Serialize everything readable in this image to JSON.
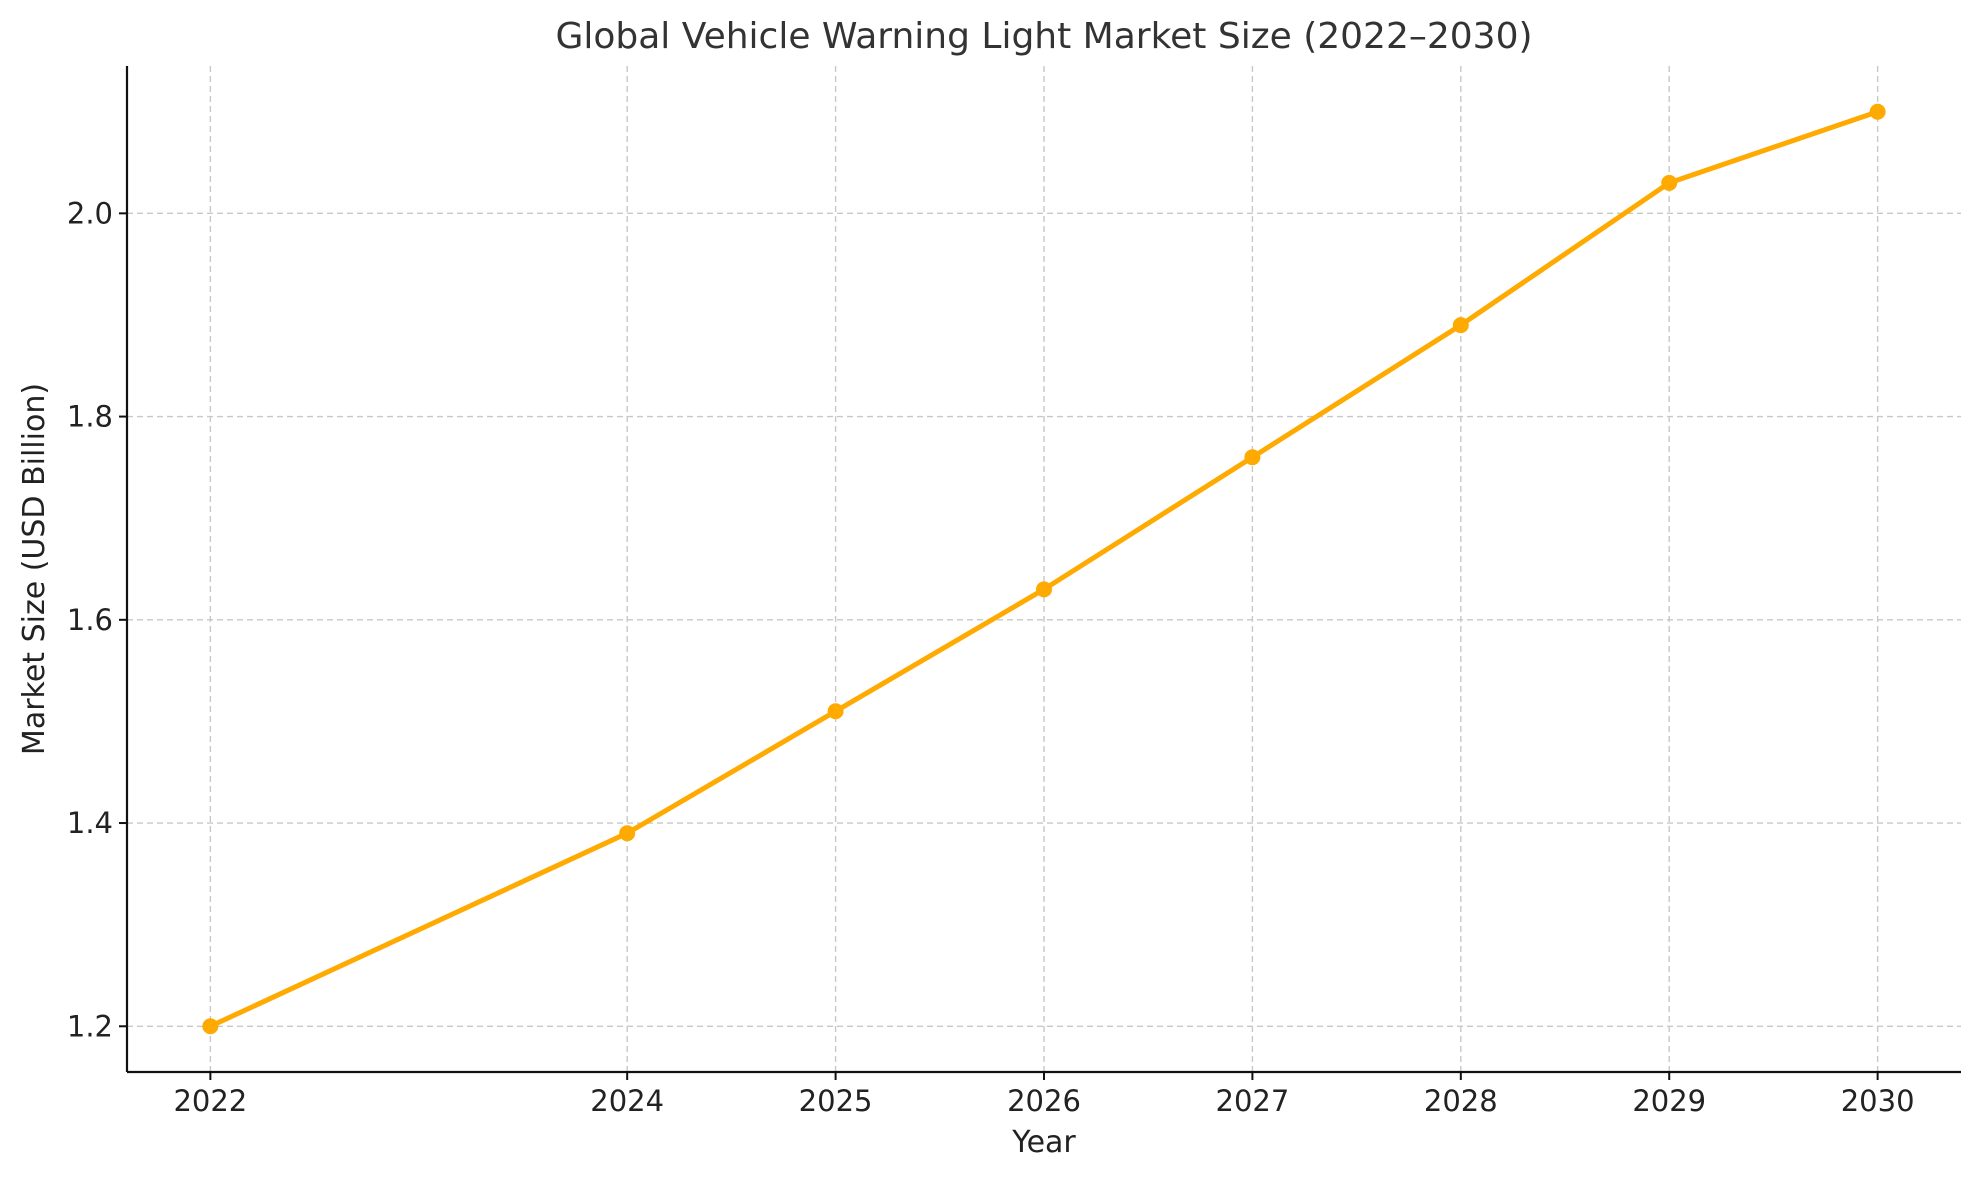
{
  "chart_data": {
    "type": "line",
    "title": "Global Vehicle Warning Light Market Size (2022–2030)",
    "xlabel": "Year",
    "ylabel": "Market Size (USD Billion)",
    "x": [
      2022,
      2024,
      2025,
      2026,
      2027,
      2028,
      2029,
      2030
    ],
    "x_tick_labels": [
      "2022",
      "2024",
      "2025",
      "2026",
      "2027",
      "2028",
      "2029",
      "2030"
    ],
    "y_ticks": [
      1.2,
      1.4,
      1.6,
      1.8,
      2.0
    ],
    "y_tick_labels": [
      "1.2",
      "1.4",
      "1.6",
      "1.8",
      "2.0"
    ],
    "series": [
      {
        "values": [
          1.2,
          1.39,
          1.51,
          1.63,
          1.76,
          1.89,
          2.03,
          2.1
        ],
        "color": "#ffaa00",
        "marker": "circle"
      }
    ],
    "xlim": [
      2021.6,
      2030.4
    ],
    "ylim": [
      1.155,
      2.145
    ],
    "grid": true,
    "legend": "none"
  }
}
